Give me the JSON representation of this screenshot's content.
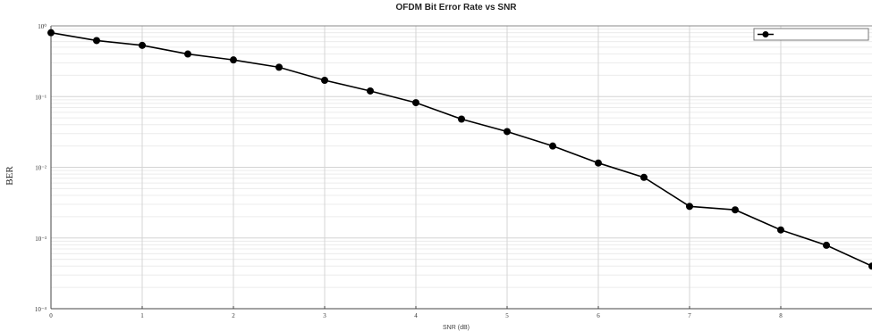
{
  "chart_data": {
    "type": "line",
    "title": "OFDM Bit Error Rate vs SNR",
    "xlabel": "SNR (dB)",
    "ylabel": "BER",
    "xscale": "linear",
    "yscale": "log",
    "xlim": [
      0,
      9
    ],
    "ylim": [
      0.0001,
      1
    ],
    "xticks": [
      0,
      1,
      2,
      3,
      4,
      5,
      6,
      7,
      8
    ],
    "yticks": [
      {
        "value": 1,
        "label": "10⁰"
      },
      {
        "value": 0.1,
        "label": "10⁻¹"
      },
      {
        "value": 0.01,
        "label": "10⁻²"
      },
      {
        "value": 0.001,
        "label": "10⁻³"
      },
      {
        "value": 0.0001,
        "label": "10⁻⁴"
      }
    ],
    "grid": true,
    "legend": {
      "position": "top-right"
    },
    "series": [
      {
        "color": "#000000",
        "marker": "circle",
        "x": [
          0,
          0.5,
          1,
          1.5,
          2,
          2.5,
          3,
          3.5,
          4,
          4.5,
          5,
          5.5,
          6,
          6.5,
          7,
          7.5,
          8,
          8.5,
          9
        ],
        "y": [
          0.8,
          0.62,
          0.53,
          0.4,
          0.33,
          0.26,
          0.17,
          0.12,
          0.082,
          0.048,
          0.032,
          0.02,
          0.0115,
          0.0072,
          0.0028,
          0.0025,
          0.0013,
          0.00079,
          0.0004
        ]
      }
    ]
  }
}
